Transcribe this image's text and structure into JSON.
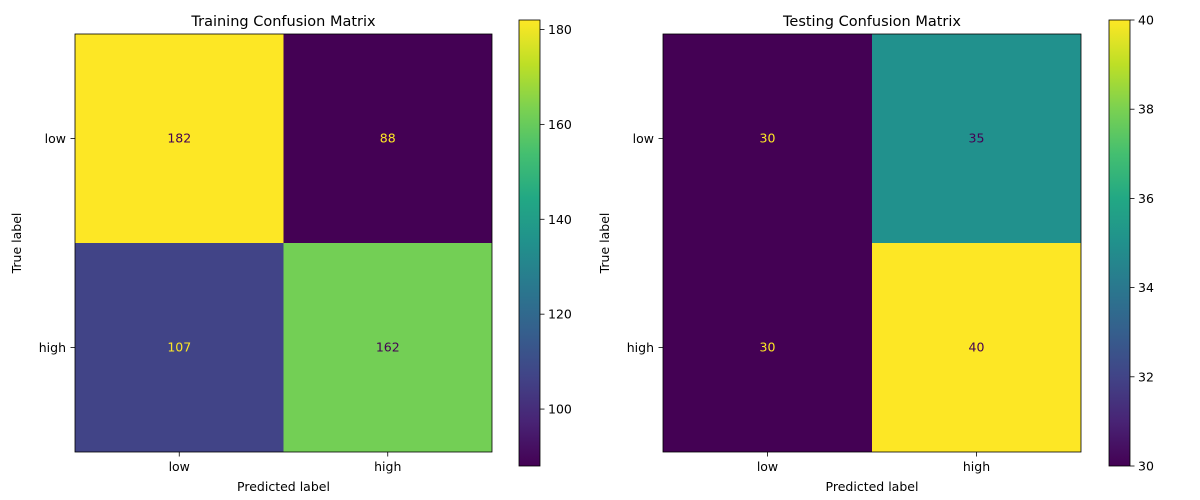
{
  "chart_data": [
    {
      "type": "heatmap",
      "title": "Training Confusion Matrix",
      "xlabel": "Predicted label",
      "ylabel": "True label",
      "x_categories": [
        "low",
        "high"
      ],
      "y_categories": [
        "low",
        "high"
      ],
      "values": [
        [
          182,
          88
        ],
        [
          107,
          162
        ]
      ],
      "colormap": "viridis",
      "colorbar": {
        "min": 88,
        "max": 182,
        "ticks": [
          100,
          120,
          140,
          160,
          180
        ]
      }
    },
    {
      "type": "heatmap",
      "title": "Testing Confusion Matrix",
      "xlabel": "Predicted label",
      "ylabel": "True label",
      "x_categories": [
        "low",
        "high"
      ],
      "y_categories": [
        "low",
        "high"
      ],
      "values": [
        [
          30,
          35
        ],
        [
          30,
          40
        ]
      ],
      "colormap": "viridis",
      "colorbar": {
        "min": 30,
        "max": 40,
        "ticks": [
          30,
          32,
          34,
          36,
          38,
          40
        ]
      }
    }
  ],
  "colors": {
    "text_on_dark": "#fde725",
    "text_on_light": "#440154",
    "axis": "#000000"
  }
}
